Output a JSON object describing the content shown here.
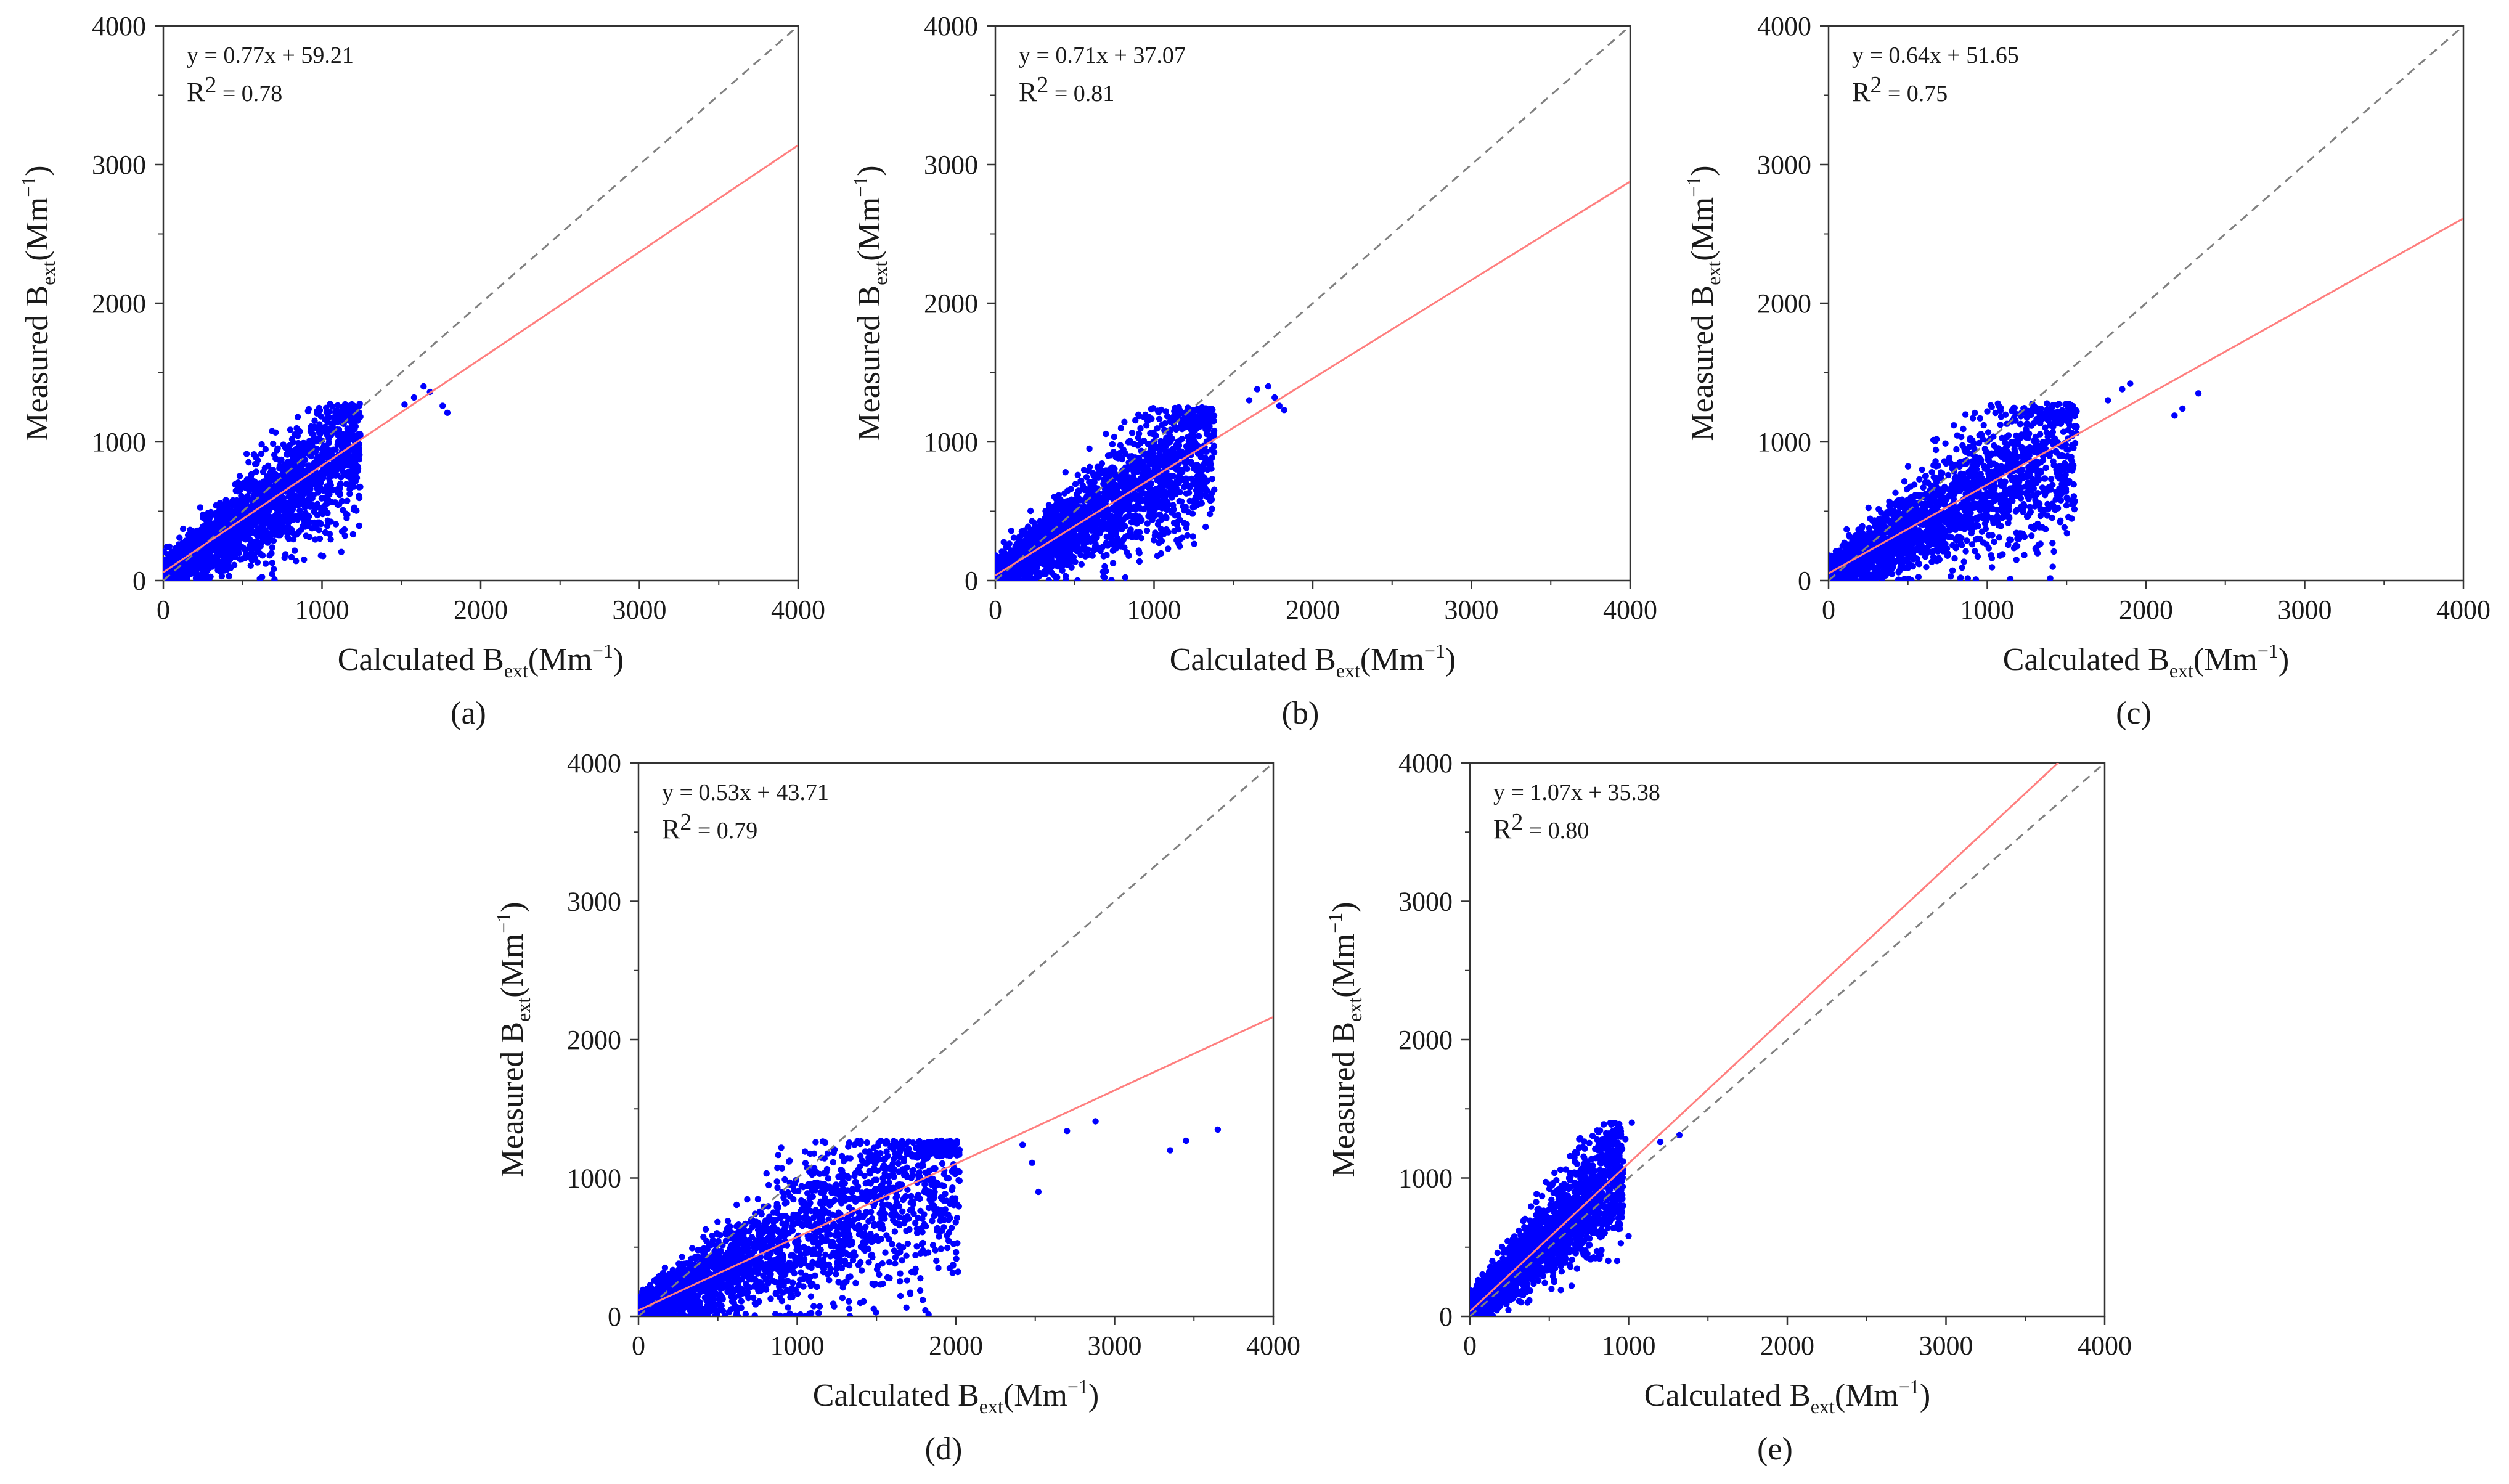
{
  "figure": {
    "panels": [
      {
        "label": "(a)",
        "equation": "y = 0.77x + 59.21",
        "r2_prefix": "R",
        "r2_sup": "2",
        "r2_value": " = 0.78"
      },
      {
        "label": "(b)",
        "equation": "y = 0.71x + 37.07",
        "r2_prefix": "R",
        "r2_sup": "2",
        "r2_value": " = 0.81"
      },
      {
        "label": "(c)",
        "equation": "y = 0.64x + 51.65",
        "r2_prefix": "R",
        "r2_sup": "2",
        "r2_value": " = 0.75"
      },
      {
        "label": "(d)",
        "equation": "y = 0.53x + 43.71",
        "r2_prefix": "R",
        "r2_sup": "2",
        "r2_value": " = 0.79"
      },
      {
        "label": "(e)",
        "equation": "y = 1.07x + 35.38",
        "r2_prefix": "R",
        "r2_sup": "2",
        "r2_value": " = 0.80"
      }
    ],
    "xlabel": {
      "main": "Calculated B",
      "sub": "ext",
      "unit": "(Mm",
      "exp": "−1",
      "close": ")"
    },
    "ylabel": {
      "main": "Measured B",
      "sub": "ext",
      "unit": "(Mm",
      "exp": "−1",
      "close": ")"
    }
  },
  "colors": {
    "points": "#0000ff",
    "fit_line": "#ff7f7f",
    "reference_line": "#808080",
    "axes": "#333333"
  },
  "chart_data": [
    {
      "type": "scatter",
      "panel": "(a)",
      "title": "",
      "xlabel": "Calculated Bext(Mm−1)",
      "ylabel": "Measured Bext(Mm−1)",
      "xlim": [
        0,
        4000
      ],
      "ylim": [
        0,
        4000
      ],
      "xticks": [
        0,
        1000,
        2000,
        3000,
        4000
      ],
      "yticks": [
        0,
        1000,
        2000,
        3000,
        4000
      ],
      "fit": {
        "slope": 0.77,
        "intercept": 59.21,
        "r2": 0.78
      },
      "reference_line": "y = x",
      "cloud": {
        "x_max": 1350,
        "y_max": 1280,
        "center_slope": 0.77
      },
      "outliers": [
        [
          1580,
          1320
        ],
        [
          1640,
          1400
        ],
        [
          1680,
          1360
        ],
        [
          1760,
          1260
        ],
        [
          1790,
          1210
        ],
        [
          1520,
          1270
        ]
      ]
    },
    {
      "type": "scatter",
      "panel": "(b)",
      "title": "",
      "xlabel": "Calculated Bext(Mm−1)",
      "ylabel": "Measured Bext(Mm−1)",
      "xlim": [
        0,
        4000
      ],
      "ylim": [
        0,
        4000
      ],
      "xticks": [
        0,
        1000,
        2000,
        3000,
        4000
      ],
      "yticks": [
        0,
        1000,
        2000,
        3000,
        4000
      ],
      "fit": {
        "slope": 0.71,
        "intercept": 37.07,
        "r2": 0.81
      },
      "reference_line": "y = x",
      "cloud": {
        "x_max": 1500,
        "y_max": 1250,
        "center_slope": 0.71
      },
      "outliers": [
        [
          1650,
          1380
        ],
        [
          1720,
          1400
        ],
        [
          1760,
          1320
        ],
        [
          1790,
          1260
        ],
        [
          1820,
          1230
        ],
        [
          1600,
          1300
        ]
      ]
    },
    {
      "type": "scatter",
      "panel": "(c)",
      "title": "",
      "xlabel": "Calculated Bext(Mm−1)",
      "ylabel": "Measured Bext(Mm−1)",
      "xlim": [
        0,
        4000
      ],
      "ylim": [
        0,
        4000
      ],
      "xticks": [
        0,
        1000,
        2000,
        3000,
        4000
      ],
      "yticks": [
        0,
        1000,
        2000,
        3000,
        4000
      ],
      "fit": {
        "slope": 0.64,
        "intercept": 51.65,
        "r2": 0.75
      },
      "reference_line": "y = x",
      "cloud": {
        "x_max": 1700,
        "y_max": 1280,
        "center_slope": 0.64
      },
      "outliers": [
        [
          1850,
          1380
        ],
        [
          1900,
          1420
        ],
        [
          2180,
          1190
        ],
        [
          2230,
          1240
        ],
        [
          2330,
          1350
        ],
        [
          1760,
          1300
        ]
      ]
    },
    {
      "type": "scatter",
      "panel": "(d)",
      "title": "",
      "xlabel": "Calculated Bext(Mm−1)",
      "ylabel": "Measured Bext(Mm−1)",
      "xlim": [
        0,
        4000
      ],
      "ylim": [
        0,
        4000
      ],
      "xticks": [
        0,
        1000,
        2000,
        3000,
        4000
      ],
      "yticks": [
        0,
        1000,
        2000,
        3000,
        4000
      ],
      "fit": {
        "slope": 0.53,
        "intercept": 43.71,
        "r2": 0.79
      },
      "reference_line": "y = x",
      "cloud": {
        "x_max": 2200,
        "y_max": 1270,
        "center_slope": 0.53
      },
      "outliers": [
        [
          2420,
          1240
        ],
        [
          2480,
          1110
        ],
        [
          2520,
          900
        ],
        [
          2700,
          1340
        ],
        [
          2880,
          1410
        ],
        [
          3350,
          1200
        ],
        [
          3450,
          1270
        ],
        [
          3650,
          1350
        ]
      ]
    },
    {
      "type": "scatter",
      "panel": "(e)",
      "title": "",
      "xlabel": "Calculated Bext(Mm−1)",
      "ylabel": "Measured Bext(Mm−1)",
      "xlim": [
        0,
        4000
      ],
      "ylim": [
        0,
        4000
      ],
      "xticks": [
        0,
        1000,
        2000,
        3000,
        4000
      ],
      "yticks": [
        0,
        1000,
        2000,
        3000,
        4000
      ],
      "fit": {
        "slope": 1.07,
        "intercept": 35.38,
        "r2": 0.8
      },
      "reference_line": "y = x",
      "cloud": {
        "x_max": 1050,
        "y_max": 1400,
        "center_slope": 1.07
      },
      "outliers": [
        [
          1020,
          1400
        ],
        [
          980,
          1280
        ],
        [
          1200,
          1260
        ],
        [
          1320,
          1310
        ],
        [
          1000,
          580
        ]
      ]
    }
  ]
}
